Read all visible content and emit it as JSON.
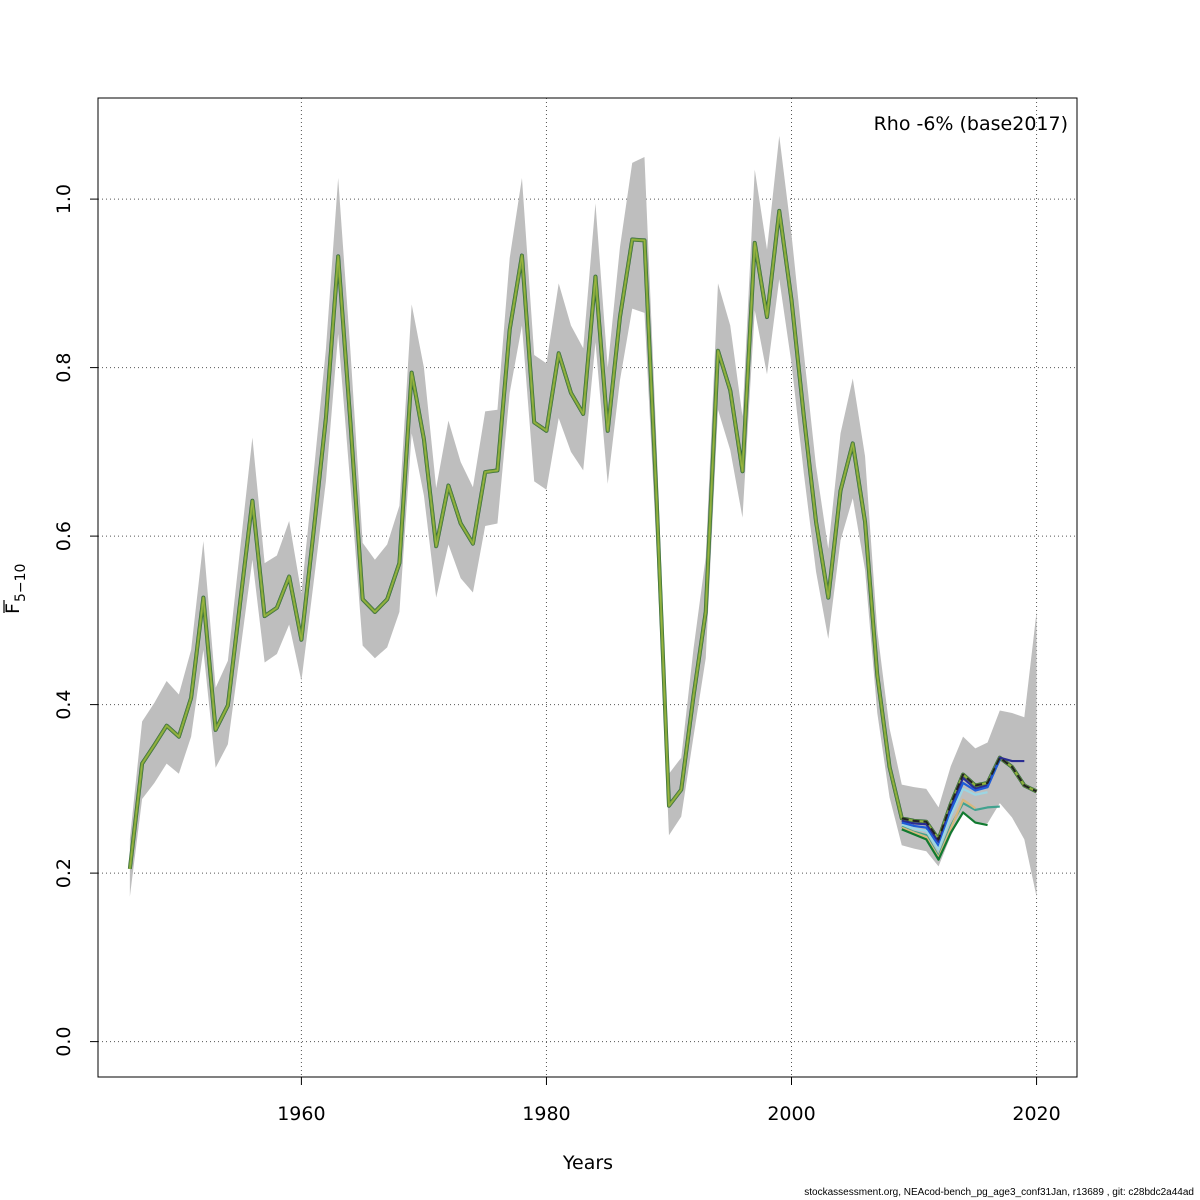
{
  "chart_data": {
    "type": "line",
    "title": "",
    "annotation": "Rho -6% (base2017)",
    "xlabel": "Years",
    "ylabel": "F",
    "ylabel_subscript": "5−10",
    "xlim": [
      1943.4,
      2023.3
    ],
    "ylim": [
      -0.042,
      1.12
    ],
    "x_ticks": [
      "1960",
      "1980",
      "2000",
      "2020"
    ],
    "y_ticks": [
      "0.0",
      "0.2",
      "0.4",
      "0.6",
      "0.8",
      "1.0"
    ],
    "x_tick_values": [
      1960,
      1980,
      2000,
      2020
    ],
    "y_tick_values": [
      0.0,
      0.2,
      0.4,
      0.6,
      0.8,
      1.0
    ],
    "grid": true,
    "confidence_band_color": "#bebebe",
    "base": {
      "x": [
        1946,
        1947,
        1948,
        1949,
        1950,
        1951,
        1952,
        1953,
        1954,
        1955,
        1956,
        1957,
        1958,
        1959,
        1960,
        1961,
        1962,
        1963,
        1964,
        1965,
        1966,
        1967,
        1968,
        1969,
        1970,
        1971,
        1972,
        1973,
        1974,
        1975,
        1976,
        1977,
        1978,
        1979,
        1980,
        1981,
        1982,
        1983,
        1984,
        1985,
        1986,
        1987,
        1988,
        1989,
        1990,
        1991,
        1992,
        1993,
        1994,
        1995,
        1996,
        1997,
        1998,
        1999,
        2000,
        2001,
        2002,
        2003,
        2004,
        2005,
        2006,
        2007,
        2008,
        2009,
        2010,
        2011,
        2012,
        2013,
        2014,
        2015,
        2016,
        2017,
        2018,
        2019,
        2020
      ],
      "y": [
        0.205,
        0.33,
        0.352,
        0.375,
        0.362,
        0.408,
        0.527,
        0.37,
        0.399,
        0.521,
        0.642,
        0.505,
        0.515,
        0.552,
        0.477,
        0.606,
        0.74,
        0.932,
        0.735,
        0.525,
        0.51,
        0.525,
        0.568,
        0.794,
        0.715,
        0.588,
        0.66,
        0.615,
        0.591,
        0.676,
        0.678,
        0.845,
        0.933,
        0.735,
        0.725,
        0.817,
        0.77,
        0.745,
        0.908,
        0.725,
        0.86,
        0.952,
        0.951,
        0.64,
        0.28,
        0.299,
        0.41,
        0.51,
        0.82,
        0.773,
        0.677,
        0.948,
        0.86,
        0.986,
        0.88,
        0.743,
        0.617,
        0.527,
        0.654,
        0.71,
        0.617,
        0.435,
        0.326,
        0.265,
        0.262,
        0.261,
        0.24,
        0.282,
        0.317,
        0.304,
        0.307,
        0.337,
        0.326,
        0.304,
        0.297
      ],
      "lower": [
        0.172,
        0.288,
        0.307,
        0.33,
        0.318,
        0.362,
        0.465,
        0.325,
        0.353,
        0.462,
        0.572,
        0.45,
        0.46,
        0.495,
        0.428,
        0.545,
        0.665,
        0.84,
        0.66,
        0.47,
        0.455,
        0.468,
        0.51,
        0.722,
        0.648,
        0.527,
        0.59,
        0.55,
        0.533,
        0.612,
        0.615,
        0.77,
        0.85,
        0.665,
        0.655,
        0.74,
        0.7,
        0.678,
        0.83,
        0.662,
        0.785,
        0.87,
        0.865,
        0.58,
        0.245,
        0.267,
        0.362,
        0.455,
        0.75,
        0.702,
        0.622,
        0.868,
        0.792,
        0.905,
        0.805,
        0.675,
        0.558,
        0.478,
        0.595,
        0.645,
        0.56,
        0.39,
        0.29,
        0.233,
        0.229,
        0.226,
        0.208,
        0.244,
        0.273,
        0.259,
        0.259,
        0.283,
        0.266,
        0.24,
        0.172
      ],
      "upper": [
        0.24,
        0.38,
        0.402,
        0.428,
        0.412,
        0.465,
        0.594,
        0.42,
        0.452,
        0.585,
        0.717,
        0.568,
        0.577,
        0.618,
        0.532,
        0.675,
        0.822,
        1.025,
        0.82,
        0.592,
        0.572,
        0.59,
        0.636,
        0.875,
        0.8,
        0.657,
        0.737,
        0.688,
        0.658,
        0.748,
        0.75,
        0.93,
        1.025,
        0.815,
        0.805,
        0.9,
        0.85,
        0.823,
        0.995,
        0.8,
        0.943,
        1.043,
        1.05,
        0.705,
        0.318,
        0.337,
        0.466,
        0.575,
        0.9,
        0.85,
        0.742,
        1.035,
        0.94,
        1.075,
        0.958,
        0.818,
        0.683,
        0.585,
        0.722,
        0.787,
        0.695,
        0.488,
        0.372,
        0.305,
        0.302,
        0.3,
        0.278,
        0.327,
        0.362,
        0.348,
        0.355,
        0.393,
        0.39,
        0.385,
        0.51
      ]
    },
    "peels": [
      {
        "color": "#2b2d93",
        "x": [
          2009,
          2010,
          2011,
          2012,
          2013,
          2014,
          2015,
          2016,
          2017,
          2018,
          2019
        ],
        "y": [
          0.262,
          0.259,
          0.258,
          0.237,
          0.278,
          0.313,
          0.3,
          0.304,
          0.337,
          0.333,
          0.333
        ]
      },
      {
        "color": "#1e5cd8",
        "x": [
          2009,
          2010,
          2011,
          2012,
          2013,
          2014,
          2015,
          2016,
          2017
        ],
        "y": [
          0.26,
          0.256,
          0.254,
          0.232,
          0.274,
          0.307,
          0.298,
          0.302,
          0.335
        ]
      },
      {
        "color": "#9bd6e4",
        "x": [
          2009,
          2010,
          2011,
          2012,
          2013,
          2014,
          2015,
          2016
        ],
        "y": [
          0.257,
          0.253,
          0.25,
          0.228,
          0.268,
          0.3,
          0.293,
          0.296
        ]
      },
      {
        "color": "#41a28f",
        "x": [
          2009,
          2010,
          2011,
          2012,
          2013,
          2014,
          2015,
          2016,
          2017
        ],
        "y": [
          0.255,
          0.249,
          0.245,
          0.22,
          0.256,
          0.283,
          0.275,
          0.278,
          0.279
        ]
      },
      {
        "color": "#d8b77e",
        "x": [
          2009,
          2010,
          2011,
          2012,
          2013,
          2014,
          2015
        ],
        "y": [
          0.254,
          0.248,
          0.243,
          0.218,
          0.253,
          0.287,
          0.277
        ]
      },
      {
        "color": "#117a30",
        "x": [
          2009,
          2010,
          2011,
          2012,
          2013,
          2014,
          2015,
          2016
        ],
        "y": [
          0.252,
          0.246,
          0.24,
          0.216,
          0.248,
          0.272,
          0.26,
          0.257
        ]
      }
    ],
    "main_line_colors": [
      "#2a5f3a",
      "#6d9a3c",
      "#9ab43e"
    ],
    "footer": "stockassessment.org, NEAcod-bench_pg_age3_conf31Jan, r13689 , git: c28bdc2a44ad"
  }
}
